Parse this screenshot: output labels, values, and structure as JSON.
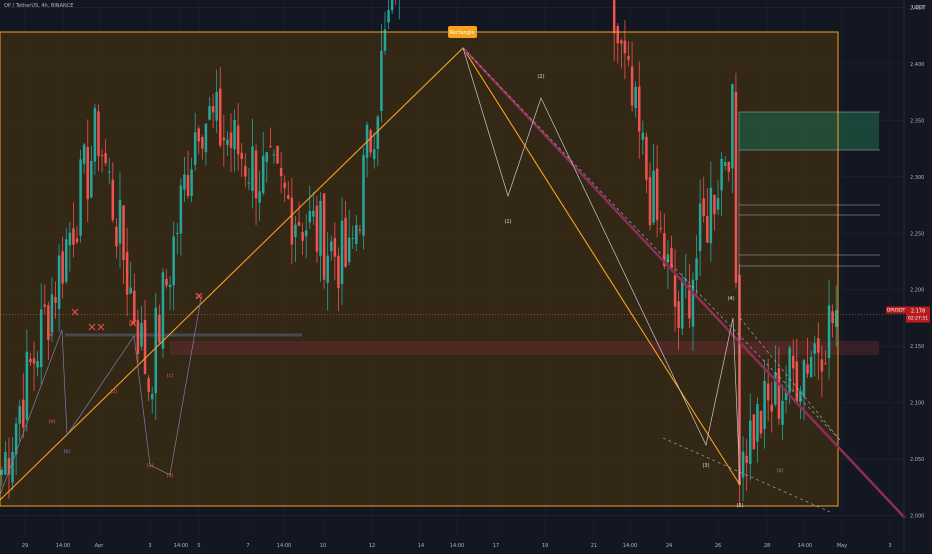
{
  "header": {
    "symbol_line": "OP / TetherUS, 4h, BINANCE"
  },
  "price_axis": {
    "currency": "USDT",
    "ticks": [
      "2.000",
      "2.050",
      "2.100",
      "2.150",
      "2.200",
      "2.250",
      "2.300",
      "2.350",
      "2.400",
      "2.450",
      "2.500",
      "2.550",
      "2.600",
      "2.650",
      "2.700",
      "2.750",
      "2.800",
      "2.850"
    ],
    "current_symbol": "OPUSDT",
    "current_price": "2.178",
    "countdown": "02:27:51"
  },
  "time_axis": {
    "labels": [
      "29",
      "14:00",
      "Apr",
      "3",
      "14:00",
      "5",
      "7",
      "14:00",
      "10",
      "12",
      "14",
      "14:00",
      "17",
      "19",
      "21",
      "14:00",
      "24",
      "26",
      "28",
      "14:00",
      "May",
      "3"
    ]
  },
  "annotations": {
    "rectangle_label": "Rectangle",
    "wave_marks": [
      "(1)",
      "(2)",
      "(3)",
      "(4)",
      "(5)",
      "(1)",
      "(2)",
      "(3)",
      "(4)",
      "(5)",
      "(a)",
      "(b)",
      "(c)",
      "(d)",
      "(e)"
    ]
  },
  "colors": {
    "background": "#131722",
    "up": "#26a69a",
    "down": "#ef5350",
    "rect_fill": "#3a2a14",
    "rect_stroke": "#f7a21b",
    "trend_line": "#8c2f55",
    "price_label_bg": "#b71c1c"
  },
  "chart_data": {
    "type": "candlestick",
    "timeframe": "4h",
    "yrange": [
      1.97,
      2.89
    ],
    "current_price": 2.178,
    "swing_points": [
      {
        "label": "29",
        "price": 2.03
      },
      {
        "label": "Apr",
        "price": 2.34
      },
      {
        "label": "3",
        "price": 2.12
      },
      {
        "label": "5",
        "price": 2.36
      },
      {
        "label": "10",
        "price": 2.22
      },
      {
        "label": "14:00",
        "price": 2.83
      },
      {
        "label": "17",
        "price": 2.56
      },
      {
        "label": "19",
        "price": 2.74
      },
      {
        "label": "24",
        "price": 2.17
      },
      {
        "label": "26",
        "price": 2.35
      },
      {
        "label": "26",
        "price": 2.06
      },
      {
        "label": "May",
        "price": 2.178
      }
    ]
  }
}
